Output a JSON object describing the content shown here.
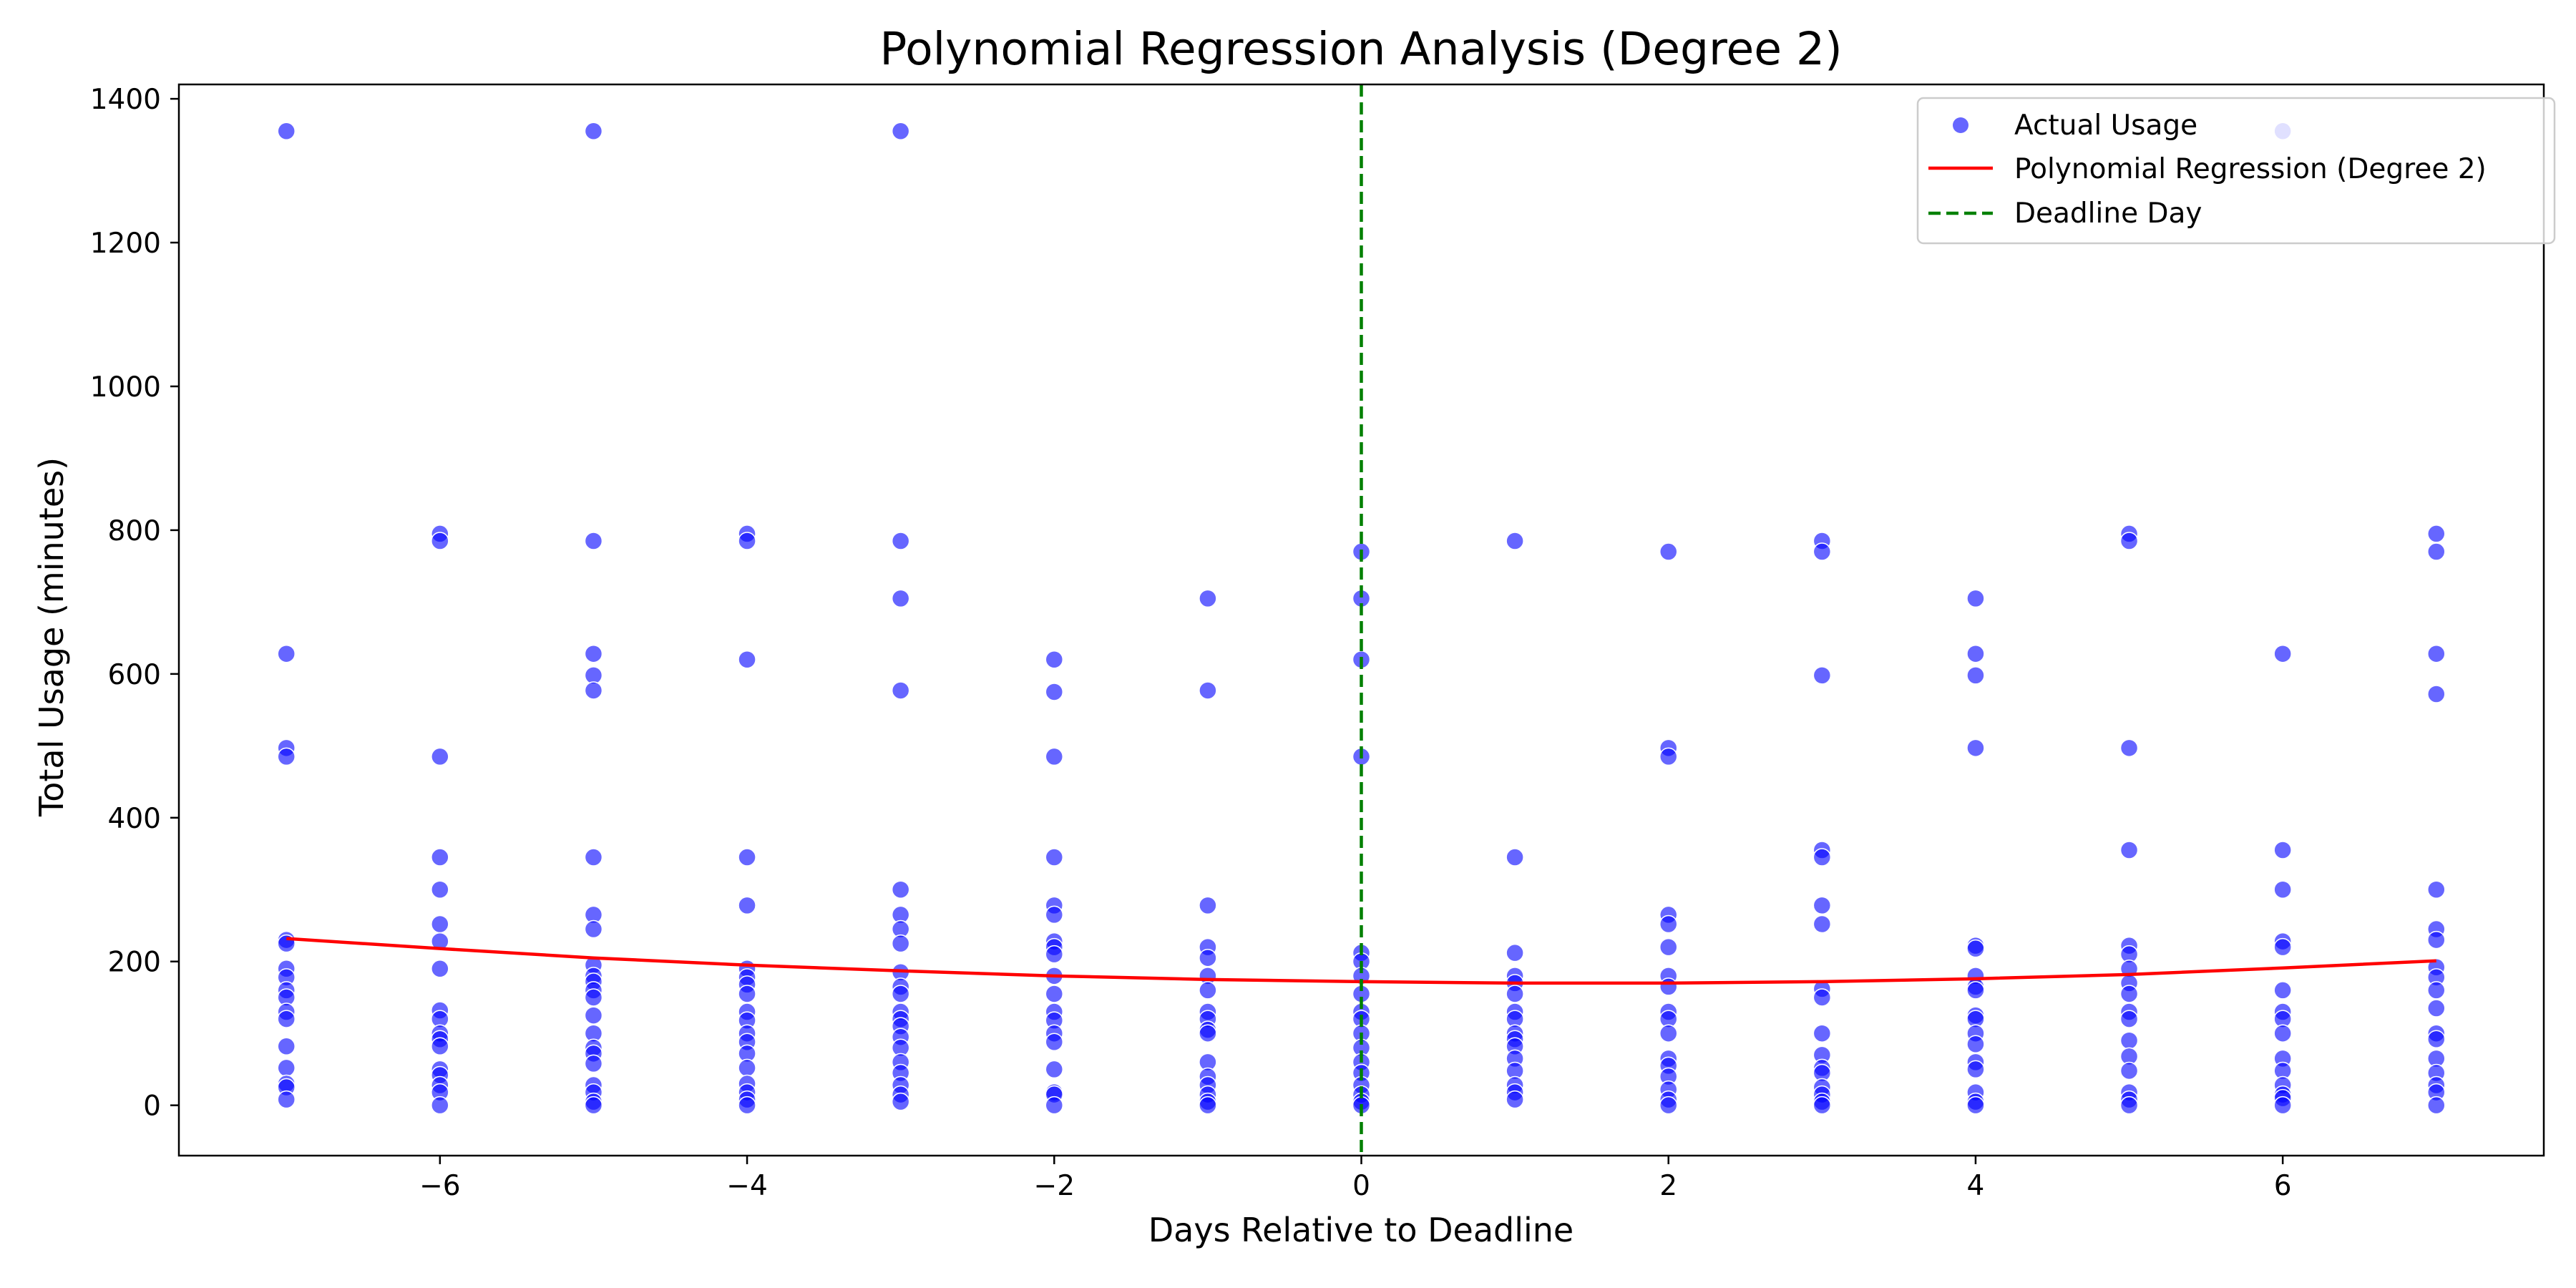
{
  "chart_data": {
    "type": "scatter",
    "title": "Polynomial Regression Analysis (Degree 2)",
    "xlabel": "Days Relative to Deadline",
    "ylabel": "Total Usage (minutes)",
    "xlim": [
      -7.7,
      7.7
    ],
    "ylim": [
      -70,
      1420
    ],
    "xticks": [
      -6,
      -4,
      -2,
      0,
      2,
      4,
      6
    ],
    "xtick_labels": [
      "−6",
      "−4",
      "−2",
      "0",
      "2",
      "4",
      "6"
    ],
    "yticks": [
      0,
      200,
      400,
      600,
      800,
      1000,
      1200,
      1400
    ],
    "ytick_labels": [
      "0",
      "200",
      "400",
      "600",
      "800",
      "1000",
      "1200",
      "1400"
    ],
    "grid": false,
    "legend_position": "top-right",
    "legend": [
      "Actual Usage",
      "Polynomial Regression (Degree 2)",
      "Deadline Day"
    ],
    "colors": {
      "points": "#0000ff",
      "regression": "#ff0000",
      "deadline": "#008000"
    },
    "series": [
      {
        "name": "Actual Usage",
        "kind": "scatter",
        "points": [
          [
            -7,
            1355
          ],
          [
            -7,
            628
          ],
          [
            -7,
            497
          ],
          [
            -7,
            485
          ],
          [
            -7,
            230
          ],
          [
            -7,
            225
          ],
          [
            -7,
            190
          ],
          [
            -7,
            178
          ],
          [
            -7,
            160
          ],
          [
            -7,
            150
          ],
          [
            -7,
            130
          ],
          [
            -7,
            120
          ],
          [
            -7,
            82
          ],
          [
            -7,
            52
          ],
          [
            -7,
            30
          ],
          [
            -7,
            25
          ],
          [
            -7,
            8
          ],
          [
            -6,
            795
          ],
          [
            -6,
            785
          ],
          [
            -6,
            485
          ],
          [
            -6,
            345
          ],
          [
            -6,
            300
          ],
          [
            -6,
            252
          ],
          [
            -6,
            228
          ],
          [
            -6,
            190
          ],
          [
            -6,
            132
          ],
          [
            -6,
            120
          ],
          [
            -6,
            100
          ],
          [
            -6,
            92
          ],
          [
            -6,
            82
          ],
          [
            -6,
            50
          ],
          [
            -6,
            42
          ],
          [
            -6,
            28
          ],
          [
            -6,
            18
          ],
          [
            -6,
            0
          ],
          [
            -5,
            1355
          ],
          [
            -5,
            785
          ],
          [
            -5,
            628
          ],
          [
            -5,
            598
          ],
          [
            -5,
            577
          ],
          [
            -5,
            345
          ],
          [
            -5,
            265
          ],
          [
            -5,
            245
          ],
          [
            -5,
            195
          ],
          [
            -5,
            180
          ],
          [
            -5,
            172
          ],
          [
            -5,
            160
          ],
          [
            -5,
            150
          ],
          [
            -5,
            125
          ],
          [
            -5,
            100
          ],
          [
            -5,
            80
          ],
          [
            -5,
            72
          ],
          [
            -5,
            58
          ],
          [
            -5,
            28
          ],
          [
            -5,
            18
          ],
          [
            -5,
            5
          ],
          [
            -5,
            0
          ],
          [
            -4,
            795
          ],
          [
            -4,
            785
          ],
          [
            -4,
            620
          ],
          [
            -4,
            345
          ],
          [
            -4,
            278
          ],
          [
            -4,
            190
          ],
          [
            -4,
            178
          ],
          [
            -4,
            168
          ],
          [
            -4,
            155
          ],
          [
            -4,
            130
          ],
          [
            -4,
            118
          ],
          [
            -4,
            100
          ],
          [
            -4,
            88
          ],
          [
            -4,
            72
          ],
          [
            -4,
            52
          ],
          [
            -4,
            30
          ],
          [
            -4,
            18
          ],
          [
            -4,
            8
          ],
          [
            -4,
            0
          ],
          [
            -3,
            1355
          ],
          [
            -3,
            785
          ],
          [
            -3,
            705
          ],
          [
            -3,
            577
          ],
          [
            -3,
            300
          ],
          [
            -3,
            265
          ],
          [
            -3,
            245
          ],
          [
            -3,
            225
          ],
          [
            -3,
            185
          ],
          [
            -3,
            165
          ],
          [
            -3,
            155
          ],
          [
            -3,
            130
          ],
          [
            -3,
            120
          ],
          [
            -3,
            110
          ],
          [
            -3,
            95
          ],
          [
            -3,
            80
          ],
          [
            -3,
            60
          ],
          [
            -3,
            45
          ],
          [
            -3,
            28
          ],
          [
            -3,
            15
          ],
          [
            -3,
            5
          ],
          [
            -2,
            620
          ],
          [
            -2,
            575
          ],
          [
            -2,
            485
          ],
          [
            -2,
            345
          ],
          [
            -2,
            278
          ],
          [
            -2,
            265
          ],
          [
            -2,
            228
          ],
          [
            -2,
            220
          ],
          [
            -2,
            210
          ],
          [
            -2,
            180
          ],
          [
            -2,
            155
          ],
          [
            -2,
            130
          ],
          [
            -2,
            118
          ],
          [
            -2,
            100
          ],
          [
            -2,
            88
          ],
          [
            -2,
            50
          ],
          [
            -2,
            18
          ],
          [
            -2,
            15
          ],
          [
            -2,
            0
          ],
          [
            -1,
            705
          ],
          [
            -1,
            577
          ],
          [
            -1,
            278
          ],
          [
            -1,
            220
          ],
          [
            -1,
            205
          ],
          [
            -1,
            180
          ],
          [
            -1,
            160
          ],
          [
            -1,
            130
          ],
          [
            -1,
            120
          ],
          [
            -1,
            105
          ],
          [
            -1,
            100
          ],
          [
            -1,
            60
          ],
          [
            -1,
            40
          ],
          [
            -1,
            28
          ],
          [
            -1,
            15
          ],
          [
            -1,
            5
          ],
          [
            -1,
            0
          ],
          [
            0,
            770
          ],
          [
            0,
            705
          ],
          [
            0,
            620
          ],
          [
            0,
            485
          ],
          [
            0,
            212
          ],
          [
            0,
            200
          ],
          [
            0,
            180
          ],
          [
            0,
            155
          ],
          [
            0,
            130
          ],
          [
            0,
            120
          ],
          [
            0,
            100
          ],
          [
            0,
            80
          ],
          [
            0,
            60
          ],
          [
            0,
            45
          ],
          [
            0,
            28
          ],
          [
            0,
            15
          ],
          [
            0,
            5
          ],
          [
            0,
            0
          ],
          [
            1,
            785
          ],
          [
            1,
            345
          ],
          [
            1,
            212
          ],
          [
            1,
            180
          ],
          [
            1,
            170
          ],
          [
            1,
            155
          ],
          [
            1,
            130
          ],
          [
            1,
            120
          ],
          [
            1,
            100
          ],
          [
            1,
            92
          ],
          [
            1,
            82
          ],
          [
            1,
            65
          ],
          [
            1,
            48
          ],
          [
            1,
            28
          ],
          [
            1,
            18
          ],
          [
            1,
            8
          ],
          [
            2,
            770
          ],
          [
            2,
            497
          ],
          [
            2,
            485
          ],
          [
            2,
            265
          ],
          [
            2,
            252
          ],
          [
            2,
            220
          ],
          [
            2,
            180
          ],
          [
            2,
            165
          ],
          [
            2,
            130
          ],
          [
            2,
            120
          ],
          [
            2,
            100
          ],
          [
            2,
            65
          ],
          [
            2,
            55
          ],
          [
            2,
            40
          ],
          [
            2,
            22
          ],
          [
            2,
            8
          ],
          [
            2,
            0
          ],
          [
            3,
            785
          ],
          [
            3,
            770
          ],
          [
            3,
            598
          ],
          [
            3,
            355
          ],
          [
            3,
            345
          ],
          [
            3,
            278
          ],
          [
            3,
            252
          ],
          [
            3,
            162
          ],
          [
            3,
            150
          ],
          [
            3,
            100
          ],
          [
            3,
            70
          ],
          [
            3,
            52
          ],
          [
            3,
            45
          ],
          [
            3,
            25
          ],
          [
            3,
            15
          ],
          [
            3,
            5
          ],
          [
            3,
            0
          ],
          [
            4,
            705
          ],
          [
            4,
            628
          ],
          [
            4,
            598
          ],
          [
            4,
            497
          ],
          [
            4,
            222
          ],
          [
            4,
            218
          ],
          [
            4,
            180
          ],
          [
            4,
            165
          ],
          [
            4,
            160
          ],
          [
            4,
            125
          ],
          [
            4,
            120
          ],
          [
            4,
            100
          ],
          [
            4,
            85
          ],
          [
            4,
            60
          ],
          [
            4,
            50
          ],
          [
            4,
            18
          ],
          [
            4,
            5
          ],
          [
            4,
            0
          ],
          [
            5,
            795
          ],
          [
            5,
            785
          ],
          [
            5,
            497
          ],
          [
            5,
            355
          ],
          [
            5,
            222
          ],
          [
            5,
            210
          ],
          [
            5,
            190
          ],
          [
            5,
            170
          ],
          [
            5,
            155
          ],
          [
            5,
            130
          ],
          [
            5,
            120
          ],
          [
            5,
            90
          ],
          [
            5,
            68
          ],
          [
            5,
            48
          ],
          [
            5,
            18
          ],
          [
            5,
            8
          ],
          [
            5,
            0
          ],
          [
            6,
            1355
          ],
          [
            6,
            628
          ],
          [
            6,
            355
          ],
          [
            6,
            300
          ],
          [
            6,
            228
          ],
          [
            6,
            220
          ],
          [
            6,
            160
          ],
          [
            6,
            130
          ],
          [
            6,
            120
          ],
          [
            6,
            100
          ],
          [
            6,
            65
          ],
          [
            6,
            48
          ],
          [
            6,
            28
          ],
          [
            6,
            15
          ],
          [
            6,
            10
          ],
          [
            6,
            0
          ],
          [
            7,
            795
          ],
          [
            7,
            770
          ],
          [
            7,
            628
          ],
          [
            7,
            572
          ],
          [
            7,
            300
          ],
          [
            7,
            245
          ],
          [
            7,
            230
          ],
          [
            7,
            192
          ],
          [
            7,
            178
          ],
          [
            7,
            160
          ],
          [
            7,
            135
          ],
          [
            7,
            100
          ],
          [
            7,
            92
          ],
          [
            7,
            65
          ],
          [
            7,
            45
          ],
          [
            7,
            28
          ],
          [
            7,
            18
          ],
          [
            7,
            0
          ]
        ]
      },
      {
        "name": "Polynomial Regression (Degree 2)",
        "kind": "line",
        "x": [
          -7,
          -6,
          -5,
          -4,
          -3,
          -2,
          -1,
          0,
          1,
          2,
          3,
          4,
          5,
          6,
          7
        ],
        "y": [
          232,
          218,
          205,
          195,
          187,
          180,
          175,
          172,
          170,
          170,
          172,
          176,
          182,
          191,
          201
        ]
      },
      {
        "name": "Deadline Day",
        "kind": "vline",
        "x": 0
      }
    ]
  }
}
